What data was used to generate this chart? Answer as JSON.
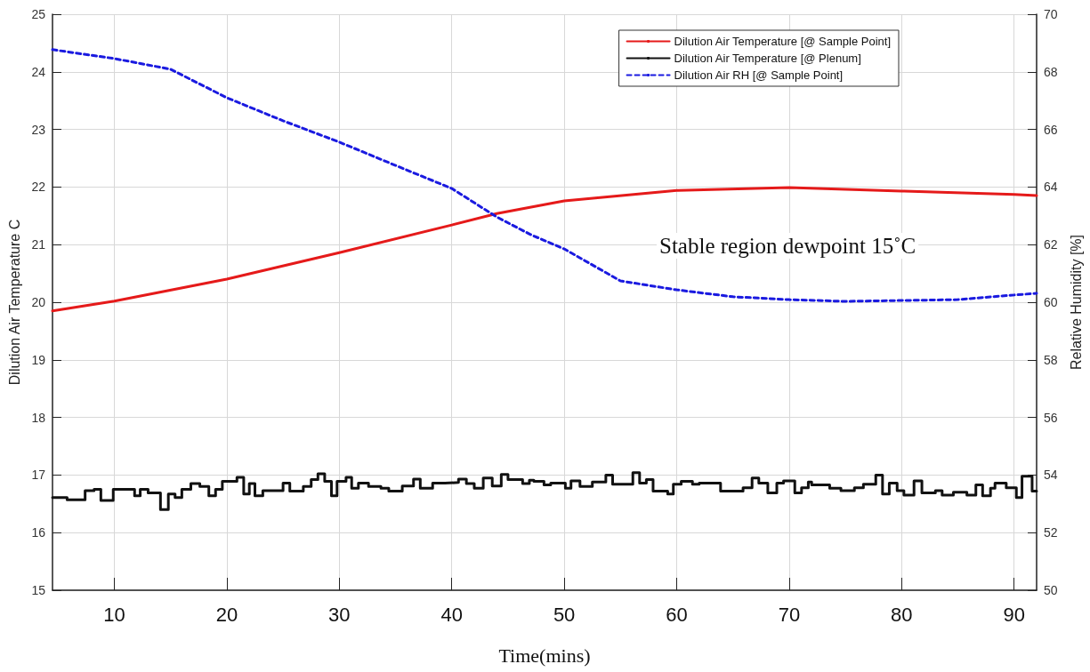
{
  "chart_data": {
    "type": "line",
    "xlabel": "Time(mins)",
    "ylabel": "Dilution Air Temperature C",
    "y2label": "Relative Humidity [%]",
    "annotations": [
      "Stable region dewpoint 15˚C"
    ],
    "xlim": [
      4.5,
      92
    ],
    "xticks": [
      10,
      20,
      30,
      40,
      50,
      60,
      70,
      80,
      90
    ],
    "ylim": [
      15,
      25
    ],
    "yticks": [
      15,
      16,
      17,
      18,
      19,
      20,
      21,
      22,
      23,
      24,
      25
    ],
    "y2lim": [
      50,
      70
    ],
    "y2ticks": [
      50,
      52,
      54,
      56,
      58,
      60,
      62,
      64,
      66,
      68,
      70
    ],
    "grid": true,
    "legend": "top right",
    "line_style": "solid",
    "series": [
      {
        "name": "Dilution Air Temperature [@ Sample Point]",
        "color": "#e51a1a",
        "x": [
          4.5,
          10,
          20,
          30,
          40,
          44,
          50,
          60,
          70,
          80,
          90,
          92
        ],
        "values": [
          19.85,
          20.02,
          20.4,
          20.86,
          21.34,
          21.54,
          21.76,
          21.94,
          21.99,
          21.93,
          21.87,
          21.85
        ]
      },
      {
        "name": "Dilution Air Temperature [@ Plenum]",
        "color": "#111111",
        "type": "step",
        "x": [
          4.5,
          5.8,
          7.4,
          8.2,
          8.8,
          9.9,
          11.8,
          12.3,
          13.0,
          14.1,
          14.8,
          15.4,
          16.0,
          16.8,
          17.6,
          18.4,
          19.0,
          19.6,
          20.9,
          21.5,
          22.0,
          22.5,
          23.2,
          25.0,
          25.6,
          26.8,
          27.5,
          28.1,
          28.7,
          29.3,
          29.8,
          30.6,
          31.1,
          31.7,
          32.6,
          33.7,
          34.4,
          35.6,
          36.6,
          37.2,
          38.3,
          39.4,
          40.6,
          41.3,
          42.0,
          42.8,
          43.6,
          44.4,
          45.0,
          46.3,
          46.9,
          47.3,
          48.2,
          48.8,
          50.1,
          50.6,
          51.4,
          52.5,
          53.7,
          54.3,
          56.1,
          56.7,
          57.3,
          57.9,
          59.2,
          59.7,
          60.4,
          61.4,
          62.0,
          63.9,
          65.9,
          66.7,
          67.3,
          68.1,
          68.9,
          69.5,
          70.5,
          71.1,
          71.7,
          72.0,
          73.6,
          74.6,
          75.8,
          76.6,
          77.7,
          78.3,
          78.9,
          79.6,
          80.2,
          81.1,
          81.8,
          83.0,
          83.6,
          84.6,
          85.8,
          86.6,
          87.2,
          87.9,
          88.3,
          89.3,
          90.2,
          90.7,
          91.6,
          92
        ],
        "values": [
          16.61,
          16.57,
          16.73,
          16.75,
          16.56,
          16.75,
          16.64,
          16.75,
          16.69,
          16.4,
          16.67,
          16.61,
          16.75,
          16.85,
          16.8,
          16.64,
          16.75,
          16.89,
          16.96,
          16.67,
          16.85,
          16.64,
          16.73,
          16.86,
          16.72,
          16.8,
          16.92,
          17.02,
          16.89,
          16.64,
          16.89,
          16.96,
          16.77,
          16.86,
          16.8,
          16.77,
          16.72,
          16.81,
          16.93,
          16.77,
          16.86,
          16.87,
          16.93,
          16.85,
          16.77,
          16.95,
          16.81,
          17.01,
          16.92,
          16.85,
          16.91,
          16.89,
          16.83,
          16.86,
          16.77,
          16.9,
          16.8,
          16.88,
          17.0,
          16.84,
          17.04,
          16.86,
          16.92,
          16.72,
          16.67,
          16.84,
          16.89,
          16.84,
          16.86,
          16.72,
          16.78,
          16.95,
          16.86,
          16.69,
          16.86,
          16.9,
          16.69,
          16.78,
          16.88,
          16.83,
          16.77,
          16.73,
          16.78,
          16.84,
          17.0,
          16.67,
          16.86,
          16.73,
          16.65,
          16.9,
          16.69,
          16.73,
          16.65,
          16.7,
          16.65,
          16.83,
          16.64,
          16.77,
          16.86,
          16.78,
          16.61,
          16.98,
          16.72,
          16.72
        ]
      },
      {
        "name": "Dilution Air RH [@ Sample Point]",
        "color": "#1a1ae0",
        "axis": "y2",
        "line_style": "dashed",
        "x": [
          4.5,
          10,
          15,
          20,
          25,
          30,
          35,
          40,
          44,
          47,
          50,
          55,
          60,
          65,
          70,
          75,
          80,
          85,
          88,
          92
        ],
        "values": [
          68.77,
          68.46,
          68.09,
          67.1,
          66.3,
          65.56,
          64.75,
          63.95,
          62.96,
          62.35,
          61.85,
          60.74,
          60.43,
          60.19,
          60.09,
          60.03,
          60.06,
          60.09,
          60.19,
          60.31
        ]
      }
    ]
  }
}
